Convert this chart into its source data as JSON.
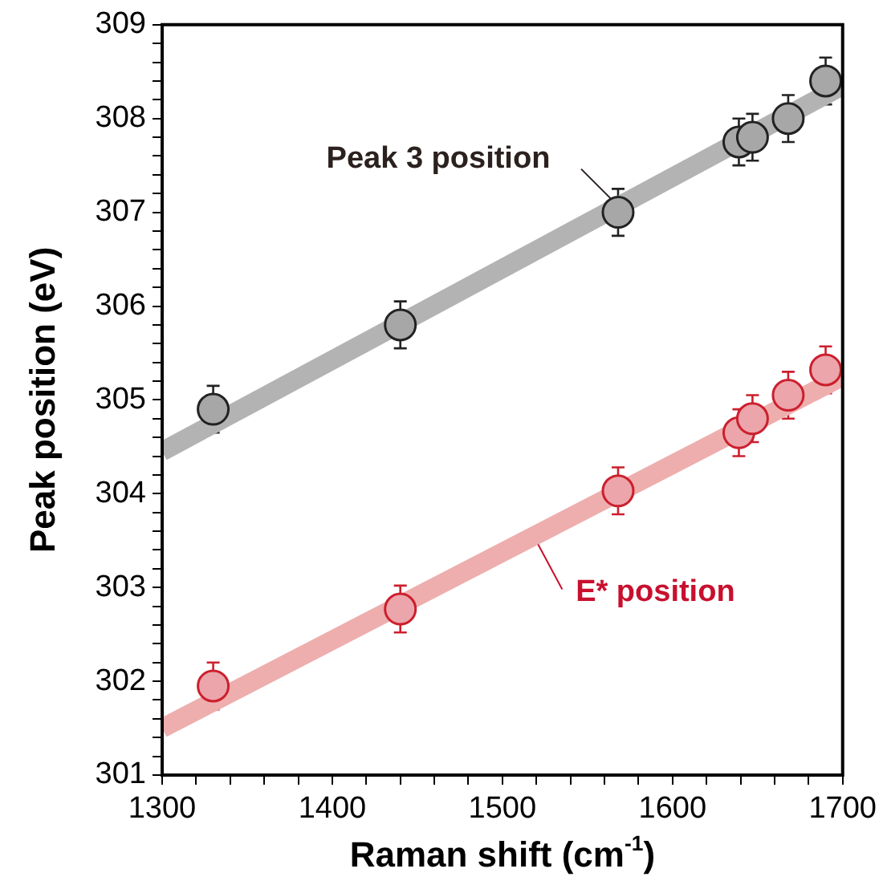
{
  "chart_data": {
    "type": "scatter",
    "xlabel": "Raman shift (cm$^{-1}$)",
    "ylabel": "Peak position (eV)",
    "xlim": [
      1300,
      1700
    ],
    "ylim": [
      301,
      309
    ],
    "xticks": [
      1300,
      {
        "value": 1320,
        "label": null
      },
      {
        "value": 1340,
        "label": null
      },
      {
        "value": 1360,
        "label": null
      },
      {
        "value": 1380,
        "label": null
      },
      1400,
      {
        "value": 1420,
        "label": null
      },
      {
        "value": 1440,
        "label": null
      },
      {
        "value": 1460,
        "label": null
      },
      {
        "value": 1480,
        "label": null
      },
      1500,
      {
        "value": 1520,
        "label": null
      },
      {
        "value": 1540,
        "label": null
      },
      {
        "value": 1560,
        "label": null
      },
      {
        "value": 1580,
        "label": null
      },
      1600,
      {
        "value": 1620,
        "label": null
      },
      {
        "value": 1640,
        "label": null
      },
      {
        "value": 1660,
        "label": null
      },
      {
        "value": 1680,
        "label": null
      },
      1700
    ],
    "yticks": [
      301,
      {
        "value": 301.2,
        "label": null
      },
      {
        "value": 301.4,
        "label": null
      },
      {
        "value": 301.6,
        "label": null
      },
      {
        "value": 301.8,
        "label": null
      },
      302,
      {
        "value": 302.2,
        "label": null
      },
      {
        "value": 302.4,
        "label": null
      },
      {
        "value": 302.6,
        "label": null
      },
      {
        "value": 302.8,
        "label": null
      },
      303,
      {
        "value": 303.2,
        "label": null
      },
      {
        "value": 303.4,
        "label": null
      },
      {
        "value": 303.6,
        "label": null
      },
      {
        "value": 303.8,
        "label": null
      },
      304,
      {
        "value": 304.2,
        "label": null
      },
      {
        "value": 304.4,
        "label": null
      },
      {
        "value": 304.6,
        "label": null
      },
      {
        "value": 304.8,
        "label": null
      },
      305,
      {
        "value": 305.2,
        "label": null
      },
      {
        "value": 305.4,
        "label": null
      },
      {
        "value": 305.6,
        "label": null
      },
      {
        "value": 305.8,
        "label": null
      },
      306,
      {
        "value": 306.2,
        "label": null
      },
      {
        "value": 306.4,
        "label": null
      },
      {
        "value": 306.6,
        "label": null
      },
      {
        "value": 306.8,
        "label": null
      },
      307,
      {
        "value": 307.2,
        "label": null
      },
      {
        "value": 307.4,
        "label": null
      },
      {
        "value": 307.6,
        "label": null
      },
      {
        "value": 307.8,
        "label": null
      },
      308,
      {
        "value": 308.2,
        "label": null
      },
      {
        "value": 308.4,
        "label": null
      },
      {
        "value": 308.6,
        "label": null
      },
      {
        "value": 308.8,
        "label": null
      },
      309
    ],
    "grid": false,
    "legend": false,
    "marker": "circle",
    "series": [
      {
        "type": "line",
        "marker": "none",
        "color": "#b3b3b3",
        "x": [
          1300,
          1700
        ],
        "values": [
          304.45,
          308.35
        ]
      },
      {
        "type": "line",
        "marker": "none",
        "color": "#eeaeae",
        "x": [
          1300,
          1700
        ],
        "values": [
          301.5,
          305.25
        ]
      },
      {
        "color": "#222222",
        "x": [
          1330,
          1440,
          1568,
          1639,
          1647,
          1668,
          1690
        ],
        "values": [
          304.9,
          305.8,
          307.0,
          307.75,
          307.8,
          308.0,
          308.4
        ],
        "errors": [
          0.25,
          0.25,
          0.25,
          0.25,
          0.25,
          0.25,
          0.25
        ]
      },
      {
        "color": "#cc1f2d",
        "x": [
          1330,
          1440,
          1568,
          1639,
          1647,
          1668,
          1690
        ],
        "values": [
          301.95,
          302.77,
          304.03,
          304.65,
          304.8,
          305.05,
          305.32
        ],
        "errors": [
          0.25,
          0.25,
          0.25,
          0.25,
          0.25,
          0.25,
          0.25
        ]
      }
    ],
    "annotations": [
      {
        "text": "Peak 3 position",
        "x": 1568,
        "y": 307.0
      },
      {
        "text": "E* position",
        "x": 1521,
        "y": 303.46
      }
    ]
  }
}
